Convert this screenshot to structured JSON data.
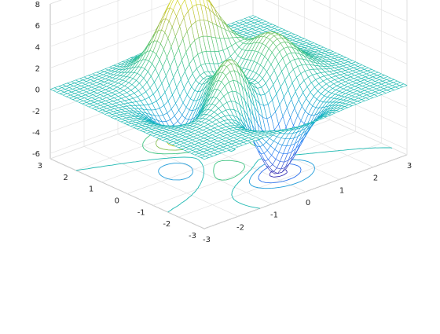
{
  "chart_data": {
    "type": "mesh",
    "plot_style": "meshc",
    "function": "peaks",
    "title": "",
    "xlabel": "",
    "ylabel": "",
    "zlabel": "",
    "xlim": [
      -3,
      3
    ],
    "ylim": [
      -3,
      3
    ],
    "zlim": [
      -6.5,
      8
    ],
    "x_ticks": [
      -3,
      -2,
      -1,
      0,
      1,
      2,
      3
    ],
    "y_ticks": [
      -3,
      -2,
      -1,
      0,
      1,
      2,
      3
    ],
    "z_ticks": [
      -6,
      -4,
      -2,
      0,
      2,
      4,
      6,
      8
    ],
    "grid": true,
    "colormap": "parula",
    "colormap_stops": [
      "#3e26a8",
      "#2c7df8",
      "#14b5c2",
      "#44c57c",
      "#b5bb37",
      "#f9fb0e"
    ],
    "mesh_resolution": 49,
    "contour_levels": [
      -6,
      -4,
      -2,
      0,
      2,
      4,
      6
    ],
    "extrema": {
      "max": {
        "x": -0.01,
        "y": 1.58,
        "z": 8.1
      },
      "min": {
        "x": 0.23,
        "y": -1.63,
        "z": -6.55
      }
    }
  }
}
